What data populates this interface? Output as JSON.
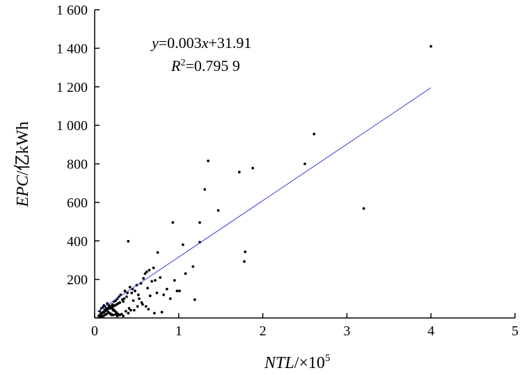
{
  "chart_data": {
    "type": "scatter",
    "xlabel_var": "NTL",
    "xlabel_unit": "/×10",
    "xlabel_exp": "5",
    "ylabel_var": "EPC",
    "ylabel_unit": "/亿kWh",
    "xlim": [
      0,
      5
    ],
    "ylim": [
      0,
      1600
    ],
    "xticks": [
      0,
      1,
      2,
      3,
      4,
      5
    ],
    "xtick_labels": [
      "0",
      "1",
      "2",
      "3",
      "4",
      "5"
    ],
    "yticks": [
      0,
      200,
      400,
      600,
      800,
      1000,
      1200,
      1400,
      1600
    ],
    "ytick_labels": [
      "",
      "200",
      "400",
      "600",
      "800",
      "1 000",
      "1 200",
      "1 400",
      "1 600"
    ],
    "grid": false,
    "equation": {
      "y_sym": "y",
      "eq_text": "=0.003",
      "x_sym": "x",
      "rest": "+31.91"
    },
    "r2": {
      "r_sym": "R",
      "sup": "2",
      "value": "=0.795 9"
    },
    "fit_line": {
      "x": [
        0.03,
        4.0
      ],
      "y": [
        32,
        1195
      ],
      "color": "#2b3fd6"
    },
    "points": {
      "x": [
        4.0,
        2.61,
        2.5,
        3.2,
        1.35,
        1.72,
        1.88,
        1.31,
        1.47,
        0.93,
        1.25,
        1.79,
        1.78,
        1.25,
        1.05,
        0.4,
        0.75,
        1.17,
        1.19,
        1.01,
        0.65,
        0.62,
        0.6,
        0.7,
        0.58,
        0.55,
        0.63,
        0.78,
        0.72,
        0.5,
        0.45,
        0.48,
        0.52,
        0.44,
        0.38,
        0.35,
        0.33,
        0.34,
        0.3,
        0.28,
        0.26,
        0.24,
        0.22,
        0.2,
        0.18,
        0.16,
        0.15,
        0.14,
        0.13,
        0.12,
        0.11,
        0.1,
        0.09,
        0.08,
        0.07,
        0.06,
        0.05,
        0.25,
        0.23,
        0.21,
        0.19,
        0.17,
        0.14,
        0.12,
        0.1,
        0.08,
        0.06,
        0.27,
        0.29,
        0.31,
        0.36,
        0.39,
        0.42,
        0.46,
        0.53,
        0.56,
        0.66,
        0.68,
        0.74,
        0.82,
        0.86,
        0.9,
        0.95,
        0.98,
        1.08,
        0.57,
        0.61,
        0.43,
        0.41,
        0.37,
        0.32,
        0.2,
        0.18,
        0.16,
        0.13,
        0.11,
        0.09,
        0.07,
        0.22,
        0.24,
        0.26,
        0.28,
        0.15,
        0.17,
        0.19,
        0.21,
        0.23,
        0.12,
        0.1,
        0.3,
        0.34,
        0.4,
        0.47,
        0.51,
        0.64,
        0.71,
        0.8,
        0.06,
        0.08,
        0.11,
        0.14,
        0.16,
        0.18,
        0.2,
        0.22,
        0.25,
        0.27
      ],
      "y": [
        1410,
        955,
        800,
        568,
        815,
        757,
        778,
        667,
        558,
        495,
        495,
        343,
        293,
        393,
        380,
        398,
        340,
        267,
        95,
        140,
        248,
        240,
        230,
        260,
        205,
        180,
        155,
        210,
        195,
        170,
        150,
        140,
        120,
        130,
        110,
        100,
        95,
        85,
        80,
        75,
        70,
        65,
        60,
        55,
        50,
        48,
        45,
        40,
        38,
        35,
        30,
        28,
        25,
        22,
        18,
        15,
        10,
        90,
        85,
        70,
        60,
        55,
        50,
        42,
        30,
        25,
        12,
        100,
        110,
        120,
        140,
        130,
        160,
        90,
        100,
        80,
        115,
        190,
        130,
        120,
        150,
        100,
        195,
        140,
        230,
        70,
        60,
        40,
        50,
        35,
        20,
        15,
        22,
        30,
        18,
        12,
        8,
        6,
        40,
        35,
        28,
        20,
        75,
        65,
        55,
        48,
        42,
        60,
        55,
        15,
        10,
        25,
        40,
        60,
        45,
        25,
        30,
        35,
        50,
        65,
        20,
        30,
        25,
        20,
        15,
        18,
        10
      ]
    }
  }
}
